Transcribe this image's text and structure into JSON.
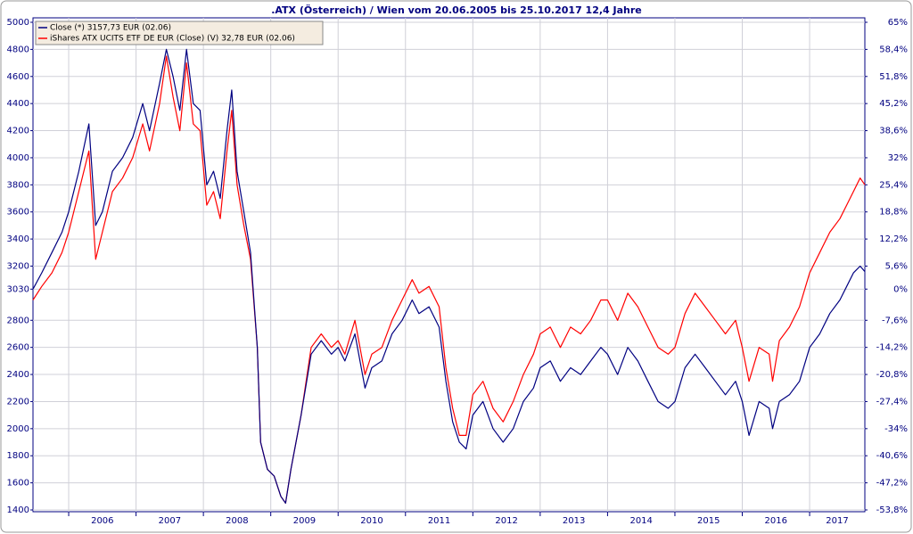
{
  "chart_data": {
    "type": "line",
    "title": ".ATX (Österreich) / Wien vom 20.06.2005 bis 25.10.2017 12,4 Jahre",
    "x": [
      2005.47,
      2005.6,
      2005.75,
      2005.9,
      2006.0,
      2006.15,
      2006.3,
      2006.4,
      2006.5,
      2006.65,
      2006.8,
      2006.95,
      2007.1,
      2007.2,
      2007.35,
      2007.45,
      2007.55,
      2007.65,
      2007.75,
      2007.85,
      2007.95,
      2008.05,
      2008.15,
      2008.25,
      2008.35,
      2008.42,
      2008.5,
      2008.6,
      2008.7,
      2008.8,
      2008.85,
      2008.95,
      2009.05,
      2009.15,
      2009.22,
      2009.3,
      2009.45,
      2009.6,
      2009.75,
      2009.9,
      2010.0,
      2010.1,
      2010.25,
      2010.4,
      2010.5,
      2010.65,
      2010.8,
      2010.95,
      2011.1,
      2011.2,
      2011.35,
      2011.5,
      2011.6,
      2011.7,
      2011.8,
      2011.9,
      2012.0,
      2012.15,
      2012.3,
      2012.45,
      2012.6,
      2012.75,
      2012.9,
      2013.0,
      2013.15,
      2013.3,
      2013.45,
      2013.6,
      2013.75,
      2013.9,
      2014.0,
      2014.15,
      2014.3,
      2014.45,
      2014.6,
      2014.75,
      2014.9,
      2015.0,
      2015.15,
      2015.3,
      2015.45,
      2015.6,
      2015.75,
      2015.9,
      2016.0,
      2016.1,
      2016.25,
      2016.4,
      2016.45,
      2016.55,
      2016.7,
      2016.85,
      2017.0,
      2017.15,
      2017.3,
      2017.45,
      2017.55,
      2017.65,
      2017.75,
      2017.82
    ],
    "series": [
      {
        "name": "Close (*) 3157,73 EUR (02.06)",
        "color": "#000080",
        "values": [
          3030,
          3150,
          3300,
          3450,
          3600,
          3900,
          4250,
          3500,
          3600,
          3900,
          4000,
          4150,
          4400,
          4200,
          4550,
          4800,
          4600,
          4350,
          4800,
          4400,
          4350,
          3800,
          3900,
          3700,
          4200,
          4500,
          3900,
          3600,
          3300,
          2600,
          1900,
          1700,
          1650,
          1500,
          1450,
          1700,
          2100,
          2550,
          2650,
          2550,
          2600,
          2500,
          2700,
          2300,
          2450,
          2500,
          2700,
          2800,
          2950,
          2850,
          2900,
          2750,
          2350,
          2050,
          1900,
          1850,
          2100,
          2200,
          2000,
          1900,
          2000,
          2200,
          2300,
          2450,
          2500,
          2350,
          2450,
          2400,
          2500,
          2600,
          2550,
          2400,
          2600,
          2500,
          2350,
          2200,
          2150,
          2200,
          2450,
          2550,
          2450,
          2350,
          2250,
          2350,
          2200,
          1950,
          2200,
          2150,
          2000,
          2200,
          2250,
          2350,
          2600,
          2700,
          2850,
          2950,
          3050,
          3150,
          3200,
          3160
        ]
      },
      {
        "name": "iShares ATX UCITS ETF DE EUR (Close) (V) 32,78 EUR (02.06)",
        "color": "#ff0000",
        "values": [
          2950,
          3050,
          3150,
          3300,
          3450,
          3750,
          4050,
          3250,
          3450,
          3750,
          3850,
          4000,
          4250,
          4050,
          4400,
          4750,
          4450,
          4200,
          4700,
          4250,
          4200,
          3650,
          3750,
          3550,
          4050,
          4350,
          3800,
          3500,
          3250,
          2600,
          1900,
          1700,
          1650,
          1500,
          1450,
          1700,
          2100,
          2600,
          2700,
          2600,
          2650,
          2550,
          2800,
          2400,
          2550,
          2600,
          2800,
          2950,
          3100,
          3000,
          3050,
          2900,
          2450,
          2150,
          1950,
          1950,
          2250,
          2350,
          2150,
          2050,
          2200,
          2400,
          2550,
          2700,
          2750,
          2600,
          2750,
          2700,
          2800,
          2950,
          2950,
          2800,
          3000,
          2900,
          2750,
          2600,
          2550,
          2600,
          2850,
          3000,
          2900,
          2800,
          2700,
          2800,
          2600,
          2350,
          2600,
          2550,
          2350,
          2650,
          2750,
          2900,
          3150,
          3300,
          3450,
          3550,
          3650,
          3750,
          3850,
          3800
        ]
      }
    ],
    "xlim": [
      2005.47,
      2017.82
    ],
    "xticks": [
      2006,
      2007,
      2008,
      2009,
      2010,
      2011,
      2012,
      2013,
      2014,
      2015,
      2016,
      2017
    ],
    "ylim": [
      1400,
      5000
    ],
    "yticks": [
      1400,
      1600,
      1800,
      2000,
      2200,
      2400,
      2600,
      2800,
      3030,
      3200,
      3400,
      3600,
      3800,
      4000,
      4200,
      4400,
      4600,
      4800,
      5000
    ],
    "y2lim": [
      -53.8,
      65
    ],
    "y2ticks": [
      {
        "value": -53.8,
        "label": "-53,8%"
      },
      {
        "value": -47.2,
        "label": "-47,2%"
      },
      {
        "value": -40.6,
        "label": "-40,6%"
      },
      {
        "value": -34,
        "label": "-34%"
      },
      {
        "value": -27.4,
        "label": "-27,4%"
      },
      {
        "value": -20.8,
        "label": "-20,8%"
      },
      {
        "value": -14.2,
        "label": "-14,2%"
      },
      {
        "value": -7.6,
        "label": "-7,6%"
      },
      {
        "value": 0,
        "label": "0%"
      },
      {
        "value": 5.6,
        "label": "5,6%"
      },
      {
        "value": 12.2,
        "label": "12,2%"
      },
      {
        "value": 18.8,
        "label": "18,8%"
      },
      {
        "value": 25.4,
        "label": "25,4%"
      },
      {
        "value": 32,
        "label": "32%"
      },
      {
        "value": 38.6,
        "label": "38,6%"
      },
      {
        "value": 45.2,
        "label": "45,2%"
      },
      {
        "value": 51.8,
        "label": "51,8%"
      },
      {
        "value": 58.4,
        "label": "58,4%"
      },
      {
        "value": 65,
        "label": "65%"
      }
    ],
    "grid": true,
    "legend": "top-left"
  }
}
